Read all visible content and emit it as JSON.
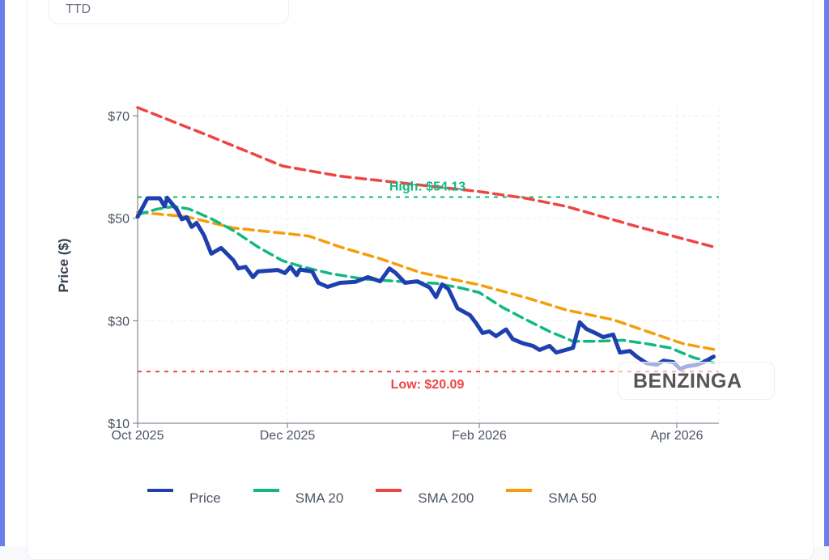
{
  "header": {
    "ticker": "TTD"
  },
  "watermark": "BENZINGA",
  "chart_data": {
    "type": "line",
    "title": "",
    "xlabel": "",
    "ylabel": "Price ($)",
    "ylim": [
      10,
      70
    ],
    "yticks": [
      {
        "value": 10,
        "label": "$10"
      },
      {
        "value": 30,
        "label": "$30"
      },
      {
        "value": 50,
        "label": "$50"
      },
      {
        "value": 70,
        "label": "$70"
      }
    ],
    "xticks": [
      {
        "date": "2025-10-01",
        "label": "Oct 2025"
      },
      {
        "date": "2025-12-01",
        "label": "Dec 2025"
      },
      {
        "date": "2026-02-01",
        "label": "Feb 2026"
      },
      {
        "date": "2026-04-01",
        "label": "Apr 2026"
      }
    ],
    "grid": true,
    "legend_position": "bottom",
    "colors": {
      "Price": "#1e40af",
      "SMA 20": "#10b981",
      "SMA 200": "#ef4444",
      "SMA 50": "#f59e0b"
    },
    "annotations": [
      {
        "label": "High: $54.13",
        "value": 54.13,
        "color": "#10b981"
      },
      {
        "label": "Low: $20.09",
        "value": 20.09,
        "color": "#ef4444"
      }
    ],
    "series": [
      {
        "name": "Price",
        "style": "solid",
        "points": [
          [
            "2025-10-01",
            50.3
          ],
          [
            "2025-10-05",
            53.9
          ],
          [
            "2025-10-10",
            53.9
          ],
          [
            "2025-10-12",
            52.3
          ],
          [
            "2025-10-13",
            54.0
          ],
          [
            "2025-10-17",
            51.7
          ],
          [
            "2025-10-19",
            49.8
          ],
          [
            "2025-10-21",
            50.2
          ],
          [
            "2025-10-23",
            48.3
          ],
          [
            "2025-10-25",
            49.1
          ],
          [
            "2025-10-28",
            46.7
          ],
          [
            "2025-10-31",
            43.1
          ],
          [
            "2025-11-04",
            44.2
          ],
          [
            "2025-11-09",
            41.8
          ],
          [
            "2025-11-11",
            40.2
          ],
          [
            "2025-11-14",
            40.5
          ],
          [
            "2025-11-17",
            38.5
          ],
          [
            "2025-11-19",
            39.6
          ],
          [
            "2025-11-27",
            39.9
          ],
          [
            "2025-11-30",
            39.3
          ],
          [
            "2025-12-02",
            40.5
          ],
          [
            "2025-12-04",
            38.9
          ],
          [
            "2025-12-05",
            40.0
          ],
          [
            "2025-12-09",
            39.6
          ],
          [
            "2025-12-11",
            37.4
          ],
          [
            "2025-12-14",
            36.6
          ],
          [
            "2025-12-18",
            37.4
          ],
          [
            "2025-12-23",
            37.6
          ],
          [
            "2025-12-27",
            38.5
          ],
          [
            "2025-12-31",
            37.7
          ],
          [
            "2026-01-03",
            40.2
          ],
          [
            "2026-01-05",
            39.3
          ],
          [
            "2026-01-08",
            37.4
          ],
          [
            "2026-01-12",
            37.7
          ],
          [
            "2026-01-16",
            36.5
          ],
          [
            "2026-01-18",
            34.6
          ],
          [
            "2026-01-20",
            37.1
          ],
          [
            "2026-01-22",
            36.2
          ],
          [
            "2026-01-25",
            32.4
          ],
          [
            "2026-01-29",
            31.1
          ],
          [
            "2026-01-31",
            29.5
          ],
          [
            "2026-02-02",
            27.6
          ],
          [
            "2026-02-04",
            27.9
          ],
          [
            "2026-02-06",
            27.0
          ],
          [
            "2026-02-09",
            28.3
          ],
          [
            "2026-02-11",
            26.4
          ],
          [
            "2026-02-14",
            25.6
          ],
          [
            "2026-02-17",
            25.1
          ],
          [
            "2026-02-19",
            24.3
          ],
          [
            "2026-02-22",
            25.1
          ],
          [
            "2026-02-24",
            23.8
          ],
          [
            "2026-03-01",
            24.7
          ],
          [
            "2026-03-03",
            29.7
          ],
          [
            "2026-03-05",
            28.4
          ],
          [
            "2026-03-08",
            27.5
          ],
          [
            "2026-03-10",
            26.8
          ],
          [
            "2026-03-13",
            27.3
          ],
          [
            "2026-03-15",
            23.8
          ],
          [
            "2026-03-18",
            24.1
          ],
          [
            "2026-03-20",
            23.0
          ],
          [
            "2026-03-23",
            21.7
          ],
          [
            "2026-03-26",
            21.4
          ],
          [
            "2026-03-28",
            22.2
          ],
          [
            "2026-03-31",
            21.9
          ],
          [
            "2026-04-02",
            20.6
          ],
          [
            "2026-04-04",
            21.1
          ],
          [
            "2026-04-07",
            21.4
          ],
          [
            "2026-04-09",
            21.9
          ],
          [
            "2026-04-12",
            23.0
          ]
        ]
      },
      {
        "name": "SMA 20",
        "style": "dashed",
        "points": [
          [
            "2025-10-01",
            50.7
          ],
          [
            "2025-10-09",
            51.8
          ],
          [
            "2025-10-16",
            52.3
          ],
          [
            "2025-10-22",
            51.8
          ],
          [
            "2025-10-31",
            49.9
          ],
          [
            "2025-11-09",
            47.6
          ],
          [
            "2025-11-19",
            44.4
          ],
          [
            "2025-11-29",
            41.7
          ],
          [
            "2025-12-06",
            40.5
          ],
          [
            "2025-12-15",
            39.2
          ],
          [
            "2025-12-26",
            38.1
          ],
          [
            "2026-01-08",
            37.6
          ],
          [
            "2026-01-18",
            37.3
          ],
          [
            "2026-01-26",
            36.4
          ],
          [
            "2026-02-01",
            35.5
          ],
          [
            "2026-02-08",
            32.6
          ],
          [
            "2026-02-15",
            30.2
          ],
          [
            "2026-02-22",
            27.9
          ],
          [
            "2026-03-01",
            26.0
          ],
          [
            "2026-03-08",
            26.0
          ],
          [
            "2026-03-16",
            26.2
          ],
          [
            "2026-03-23",
            25.5
          ],
          [
            "2026-03-30",
            24.7
          ],
          [
            "2026-04-06",
            22.8
          ],
          [
            "2026-04-12",
            21.8
          ]
        ]
      },
      {
        "name": "SMA 200",
        "style": "dashed",
        "points": [
          [
            "2025-10-01",
            71.6
          ],
          [
            "2025-10-31",
            65.9
          ],
          [
            "2025-11-29",
            60.2
          ],
          [
            "2025-12-18",
            58.2
          ],
          [
            "2026-02-01",
            55.2
          ],
          [
            "2026-02-15",
            53.9
          ],
          [
            "2026-02-27",
            52.3
          ],
          [
            "2026-03-20",
            48.4
          ],
          [
            "2026-04-12",
            44.4
          ]
        ]
      },
      {
        "name": "SMA 50",
        "style": "dashed",
        "points": [
          [
            "2025-10-01",
            51.2
          ],
          [
            "2025-10-21",
            50.3
          ],
          [
            "2025-11-09",
            48.1
          ],
          [
            "2025-11-29",
            47.1
          ],
          [
            "2025-12-08",
            46.5
          ],
          [
            "2025-12-18",
            44.4
          ],
          [
            "2025-12-31",
            42.1
          ],
          [
            "2026-01-13",
            39.4
          ],
          [
            "2026-02-01",
            37.0
          ],
          [
            "2026-02-15",
            34.5
          ],
          [
            "2026-02-27",
            32.1
          ],
          [
            "2026-03-13",
            30.2
          ],
          [
            "2026-03-25",
            27.5
          ],
          [
            "2026-04-03",
            25.5
          ],
          [
            "2026-04-12",
            24.4
          ]
        ]
      }
    ]
  }
}
